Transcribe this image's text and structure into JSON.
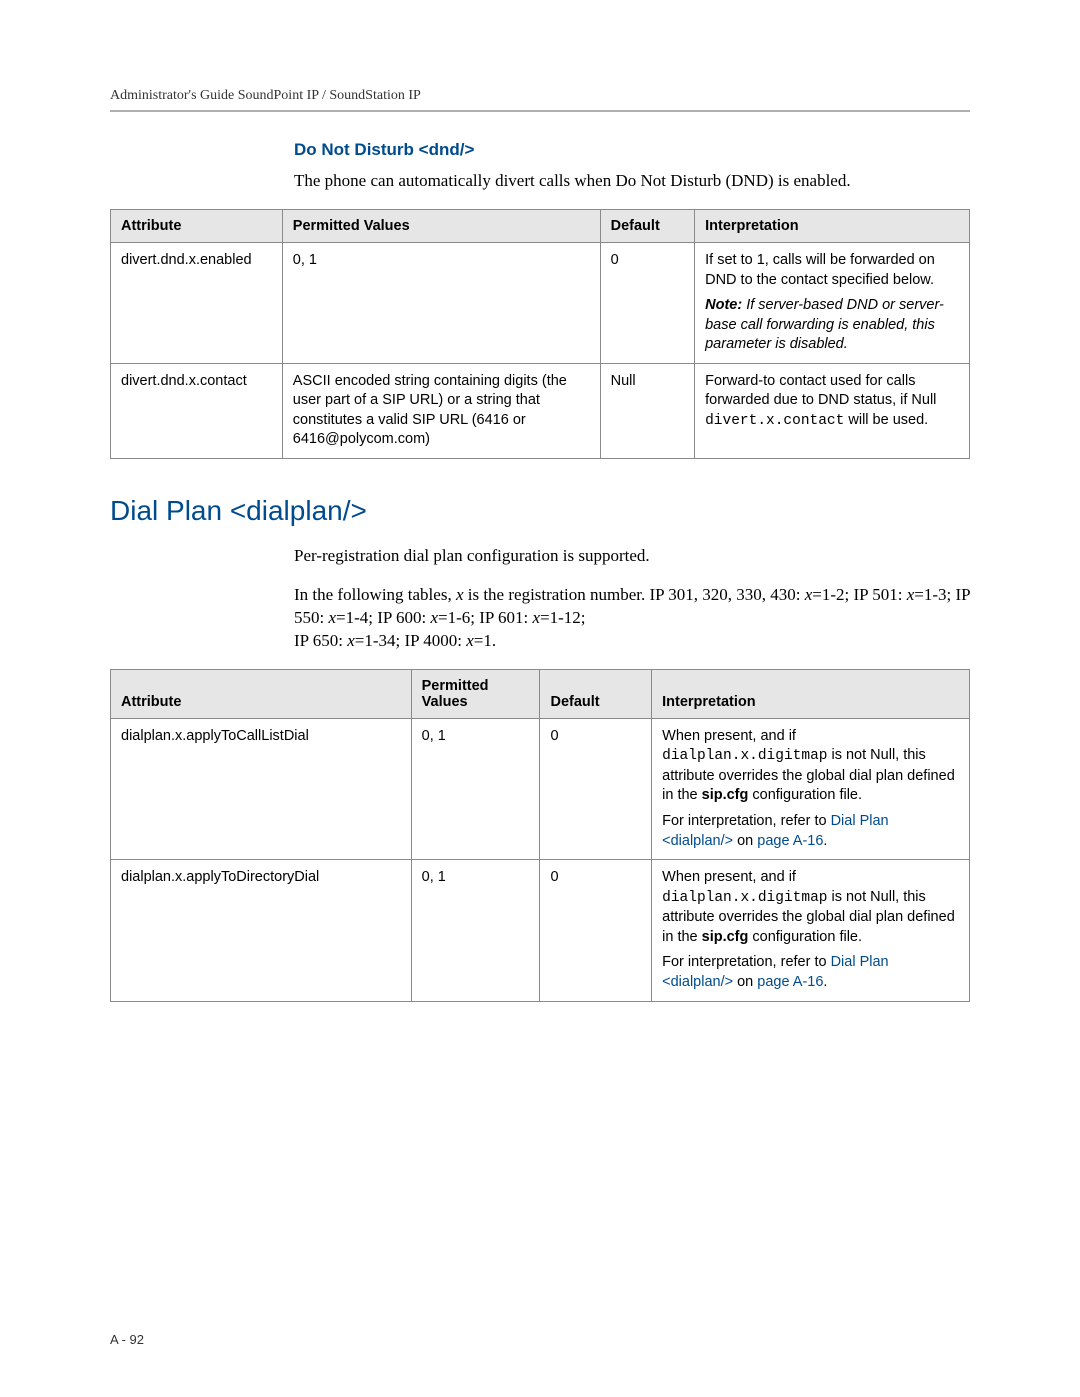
{
  "colors": {
    "heading_blue": "#004b8d",
    "link_blue": "#004b8d",
    "table_header_bg": "#e6e6e6",
    "table_border": "#8a8a8a",
    "rule": "#b0b0b0",
    "body_text": "#000000"
  },
  "typography": {
    "body_font": "Palatino-like serif",
    "ui_font": "Arial",
    "mono_font": "Courier New",
    "body_size_pt": 12,
    "table_size_pt": 10.5,
    "h2_size_pt": 21,
    "h3_size_pt": 12.5
  },
  "header": {
    "running": "Administrator's Guide SoundPoint IP / SoundStation IP"
  },
  "dnd": {
    "title": "Do Not Disturb <dnd/>",
    "intro": "The phone can automatically divert calls when Do Not Disturb (DND) is enabled.",
    "table": {
      "columns": [
        "Attribute",
        "Permitted Values",
        "Default",
        "Interpretation"
      ],
      "rows": [
        {
          "attribute": "divert.dnd.x.enabled",
          "permitted": "0, 1",
          "default": "0",
          "interp": {
            "p1": "If set to 1, calls will be forwarded on DND to the contact specified below.",
            "note_label": "Note:",
            "note_body": " If server-based DND or server-base call forwarding is enabled, this parameter is disabled."
          }
        },
        {
          "attribute": "divert.dnd.x.contact",
          "permitted": "ASCII encoded string containing digits (the user part of a SIP URL) or a string that constitutes a valid SIP URL (6416 or 6416@polycom.com)",
          "default": "Null",
          "interp": {
            "p1": "Forward-to contact used for calls forwarded due to DND status, if Null ",
            "code": "divert.x.contact",
            "p2": " will be used."
          }
        }
      ]
    }
  },
  "dialplan": {
    "title": "Dial Plan <dialplan/>",
    "intro1": "Per-registration dial plan configuration is supported.",
    "intro2_a": "In the following tables, ",
    "intro2_x": "x",
    "intro2_b": " is the registration number. IP 301, 320, 330, 430: ",
    "intro2_c": "=1-2; IP 501: ",
    "intro2_d": "=1-3; IP 550: ",
    "intro2_e": "=1-4; IP 600: ",
    "intro2_f": "=1-6; IP 601: ",
    "intro2_g": "=1-12;",
    "intro2_h": "IP 650: ",
    "intro2_i": "=1-34; IP 4000: ",
    "intro2_j": "=1.",
    "table": {
      "columns": [
        "Attribute",
        "Permitted Values",
        "Default",
        "Interpretation"
      ],
      "rows": [
        {
          "attribute": "dialplan.x.applyToCallListDial",
          "permitted": "0, 1",
          "default": "0",
          "interp": {
            "lead": "When present, and if ",
            "code": "dialplan.x.digitmap",
            "mid": " is not Null, this attribute overrides the global dial plan defined in the ",
            "bold": "sip.cfg",
            "tail": " configuration file.",
            "ref_pre": "For interpretation, refer to ",
            "ref_link": "Dial Plan <dialplan/>",
            "ref_on": " on ",
            "ref_page": "page A-16",
            "ref_post": "."
          }
        },
        {
          "attribute": "dialplan.x.applyToDirectoryDial",
          "permitted": "0, 1",
          "default": "0",
          "interp": {
            "lead": "When present, and if ",
            "code": "dialplan.x.digitmap",
            "mid": " is not Null, this attribute overrides the global dial plan defined in the ",
            "bold": "sip.cfg",
            "tail": " configuration file.",
            "ref_pre": "For interpretation, refer to ",
            "ref_link": "Dial Plan <dialplan/>",
            "ref_on": " on ",
            "ref_page": "page A-16",
            "ref_post": "."
          }
        }
      ]
    }
  },
  "footer": {
    "page": "A - 92"
  }
}
